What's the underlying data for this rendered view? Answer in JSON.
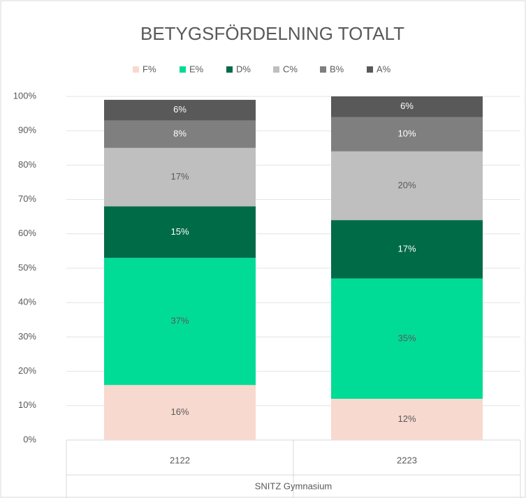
{
  "chart_data": {
    "type": "stacked_bar",
    "title": "BETYGSFÖRDELNING TOTALT",
    "categories": [
      "2122",
      "2223"
    ],
    "group_label": "SNITZ Gymnasium",
    "series": [
      {
        "name": "F%",
        "color": "#f8d9cf",
        "label_color": "#595959",
        "values": [
          16,
          12
        ],
        "value_labels": [
          "16%",
          "12%"
        ]
      },
      {
        "name": "E%",
        "color": "#00dc96",
        "label_color": "#595959",
        "values": [
          37,
          35
        ],
        "value_labels": [
          "37%",
          "35%"
        ]
      },
      {
        "name": "D%",
        "color": "#006b47",
        "label_color": "#ffffff",
        "values": [
          15,
          17
        ],
        "value_labels": [
          "15%",
          "17%"
        ]
      },
      {
        "name": "C%",
        "color": "#bfbfbf",
        "label_color": "#595959",
        "values": [
          17,
          20
        ],
        "value_labels": [
          "17%",
          "20%"
        ]
      },
      {
        "name": "B%",
        "color": "#7f7f7f",
        "label_color": "#ffffff",
        "values": [
          8,
          10
        ],
        "value_labels": [
          "8%",
          "10%"
        ]
      },
      {
        "name": "A%",
        "color": "#595959",
        "label_color": "#ffffff",
        "values": [
          6,
          6
        ],
        "value_labels": [
          "6%",
          "6%"
        ]
      }
    ],
    "ylim": [
      0,
      100
    ],
    "yticks": [
      {
        "value": 0,
        "label": "0%"
      },
      {
        "value": 10,
        "label": "10%"
      },
      {
        "value": 20,
        "label": "20%"
      },
      {
        "value": 30,
        "label": "30%"
      },
      {
        "value": 40,
        "label": "40%"
      },
      {
        "value": 50,
        "label": "50%"
      },
      {
        "value": 60,
        "label": "60%"
      },
      {
        "value": 70,
        "label": "70%"
      },
      {
        "value": 80,
        "label": "80%"
      },
      {
        "value": 90,
        "label": "90%"
      },
      {
        "value": 100,
        "label": "100%"
      }
    ],
    "grid": true,
    "legend": "top"
  }
}
